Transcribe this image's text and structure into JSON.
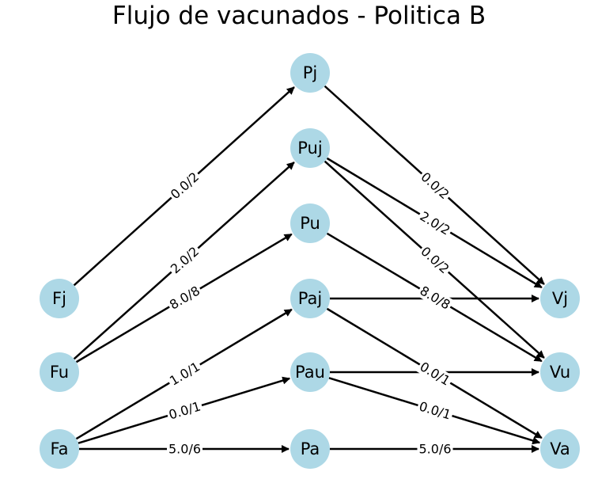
{
  "title": "Flujo de vacunados - Politica B",
  "node_color": "#add8e6",
  "edge_color": "#000000",
  "nodes": [
    {
      "id": "Fj",
      "label": "Fj"
    },
    {
      "id": "Fu",
      "label": "Fu"
    },
    {
      "id": "Fa",
      "label": "Fa"
    },
    {
      "id": "Pj",
      "label": "Pj"
    },
    {
      "id": "Puj",
      "label": "Puj"
    },
    {
      "id": "Pu",
      "label": "Pu"
    },
    {
      "id": "Paj",
      "label": "Paj"
    },
    {
      "id": "Pau",
      "label": "Pau"
    },
    {
      "id": "Pa",
      "label": "Pa"
    },
    {
      "id": "Vj",
      "label": "Vj"
    },
    {
      "id": "Vu",
      "label": "Vu"
    },
    {
      "id": "Va",
      "label": "Va"
    }
  ],
  "edges": [
    {
      "from": "Fj",
      "to": "Pj",
      "label": "0.0/2"
    },
    {
      "from": "Fu",
      "to": "Puj",
      "label": "2.0/2"
    },
    {
      "from": "Fu",
      "to": "Pu",
      "label": "8.0/8"
    },
    {
      "from": "Fa",
      "to": "Paj",
      "label": "1.0/1"
    },
    {
      "from": "Fa",
      "to": "Pau",
      "label": "0.0/1"
    },
    {
      "from": "Fa",
      "to": "Pa",
      "label": "5.0/6"
    },
    {
      "from": "Pj",
      "to": "Vj",
      "label": "0.0/2"
    },
    {
      "from": "Puj",
      "to": "Vj",
      "label": "2.0/2"
    },
    {
      "from": "Puj",
      "to": "Vu",
      "label": "0.0/2"
    },
    {
      "from": "Pu",
      "to": "Vu",
      "label": "8.0/8"
    },
    {
      "from": "Paj",
      "to": "Vj",
      "label": ""
    },
    {
      "from": "Paj",
      "to": "Va",
      "label": "0.0/1"
    },
    {
      "from": "Pau",
      "to": "Vu",
      "label": ""
    },
    {
      "from": "Pau",
      "to": "Va",
      "label": "0.0/1"
    },
    {
      "from": "Pa",
      "to": "Va",
      "label": "5.0/6"
    }
  ]
}
